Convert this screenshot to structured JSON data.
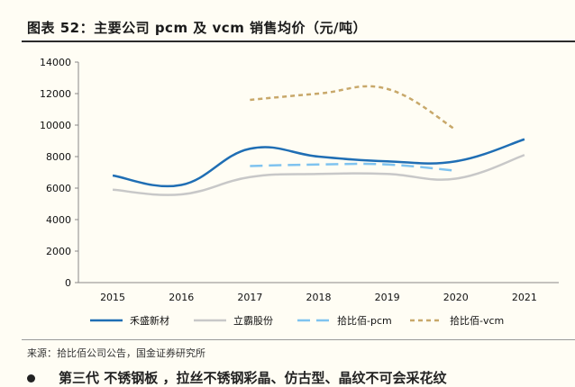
{
  "title": "图表 52：主要公司 pcm 及 vcm 销售均价（元/吨）",
  "source": "来源：拾比佰公司公告，国金证券研究所",
  "cutoff_text": "第三代    不锈钢板   ，拉丝不锈钢彩晶、仿古型、晶纹不可会采花纹",
  "chart_data": {
    "type": "line",
    "title": "",
    "xlabel": "",
    "ylabel": "",
    "ylim": [
      0,
      14000
    ],
    "yticks": [
      0,
      2000,
      4000,
      6000,
      8000,
      10000,
      12000,
      14000
    ],
    "categories": [
      "2015",
      "2016",
      "2017",
      "2018",
      "2019",
      "2020",
      "2021"
    ],
    "grid": false,
    "legend_position": "bottom",
    "series": [
      {
        "name": "禾盛新材",
        "color": "#1f6eb4",
        "dash": "",
        "width": 2.5,
        "values": [
          6800,
          6200,
          8500,
          8000,
          7700,
          7700,
          9100
        ]
      },
      {
        "name": "立霸股份",
        "color": "#c8c8c8",
        "dash": "",
        "width": 2.5,
        "values": [
          5900,
          5600,
          6700,
          6900,
          6900,
          6600,
          8100
        ]
      },
      {
        "name": "拾比佰-pcm",
        "color": "#7fc3ef",
        "dash": "14 7",
        "width": 2.5,
        "values": [
          null,
          null,
          7400,
          7500,
          7500,
          7100,
          null
        ]
      },
      {
        "name": "拾比佰-vcm",
        "color": "#c8a86a",
        "dash": "5 4",
        "width": 2.5,
        "values": [
          null,
          null,
          11600,
          12000,
          12300,
          9700,
          null
        ]
      }
    ]
  }
}
